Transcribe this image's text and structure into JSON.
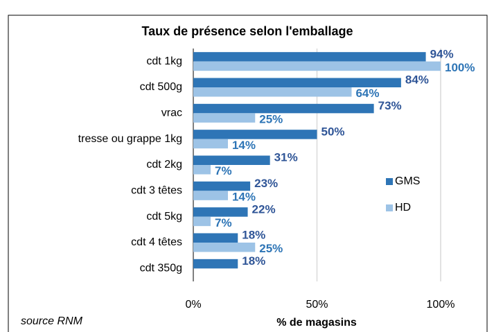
{
  "chart_data": {
    "type": "hbar",
    "title": "Taux de présence selon l'emballage",
    "categories": [
      "cdt 1kg",
      "cdt 500g",
      "vrac",
      "tresse ou grappe 1kg",
      "cdt 2kg",
      "cdt 3 têtes",
      "cdt 5kg",
      "cdt 4 têtes",
      "cdt 350g"
    ],
    "series": [
      {
        "name": "GMS",
        "color": "#2e75b6",
        "label_color": "#2f5597",
        "values": [
          94,
          84,
          73,
          50,
          31,
          23,
          22,
          18,
          18
        ],
        "value_labels": [
          "94%",
          "84%",
          "73%",
          "50%",
          "31%",
          "23%",
          "22%",
          "18%",
          "18%"
        ]
      },
      {
        "name": "HD",
        "color": "#9dc3e6",
        "label_color": "#2e75b6",
        "values": [
          100,
          64,
          25,
          14,
          7,
          14,
          7,
          25,
          null
        ],
        "value_labels": [
          "100%",
          "64%",
          "25%",
          "14%",
          "7%",
          "14%",
          "7%",
          "25%",
          null
        ]
      }
    ],
    "xlim": [
      0,
      100
    ],
    "xticks": [
      {
        "value": 0,
        "label": "0%"
      },
      {
        "value": 50,
        "label": "50%"
      },
      {
        "value": 100,
        "label": "100%"
      }
    ],
    "xlabel": "% de magasins",
    "annotation": "source RNM",
    "grid": true
  }
}
